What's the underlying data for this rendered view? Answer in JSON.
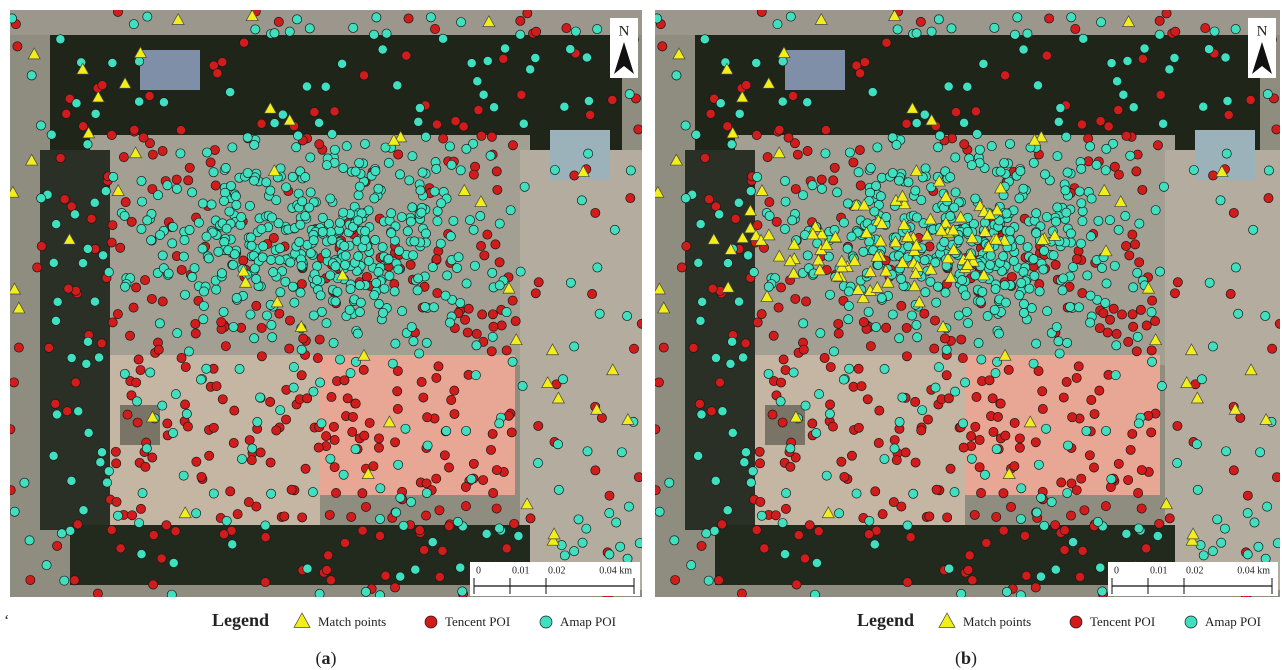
{
  "stray_mark": "‘",
  "panels": [
    {
      "north": "N",
      "scale_bar": [
        "0",
        "0.01",
        "0.02",
        "0.04 km"
      ],
      "legend": {
        "title": "Legend",
        "items": [
          "Match points",
          "Tencent POI",
          "Amap POI"
        ]
      },
      "caption": [
        "(",
        "a",
        ")"
      ]
    },
    {
      "north": "N",
      "scale_bar": [
        "0",
        "0.01",
        "0.02",
        "0.04 km"
      ],
      "legend": {
        "title": "Legend",
        "items": [
          "Match points",
          "Tencent POI",
          "Amap POI"
        ]
      },
      "caption": [
        "(",
        "b",
        ")"
      ]
    }
  ]
}
